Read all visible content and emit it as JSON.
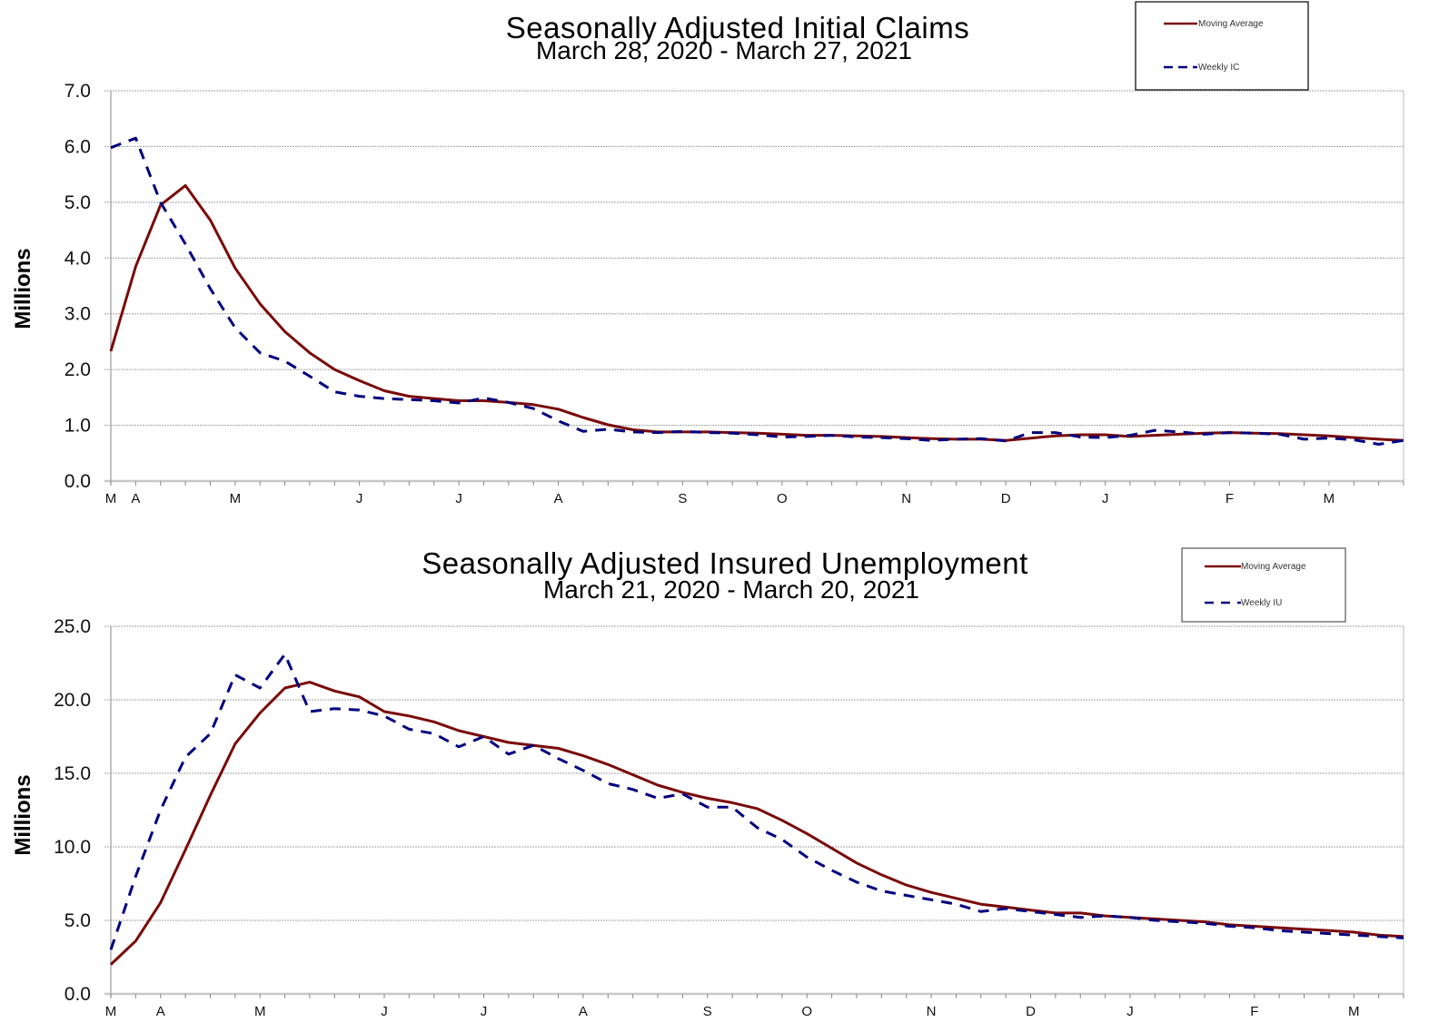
{
  "colors": {
    "moving_average": "#7a0a0a",
    "weekly": "#00007f",
    "grid": "#a0a0a0",
    "axis": "#999999"
  },
  "chart_data": [
    {
      "type": "line",
      "title": "Seasonally Adjusted Initial Claims",
      "subtitle": "March 28, 2020 - March 27, 2021",
      "xlabel": "",
      "ylabel": "Millions",
      "ylim": [
        0,
        7
      ],
      "yticks": [
        "0.0",
        "1.0",
        "2.0",
        "3.0",
        "4.0",
        "5.0",
        "6.0",
        "7.0"
      ],
      "xtick_labels": [
        {
          "label": "M",
          "week": 0
        },
        {
          "label": "A",
          "week": 1
        },
        {
          "label": "M",
          "week": 5
        },
        {
          "label": "J",
          "week": 10
        },
        {
          "label": "J",
          "week": 14
        },
        {
          "label": "A",
          "week": 18
        },
        {
          "label": "S",
          "week": 23
        },
        {
          "label": "O",
          "week": 27
        },
        {
          "label": "N",
          "week": 32
        },
        {
          "label": "D",
          "week": 36
        },
        {
          "label": "J",
          "week": 40
        },
        {
          "label": "F",
          "week": 45
        },
        {
          "label": "M",
          "week": 49
        }
      ],
      "grid": true,
      "legend": {
        "placement": "top-right",
        "entries": [
          "Moving Average",
          "Weekly IC"
        ]
      },
      "series": [
        {
          "name": "Moving Average",
          "style": "solid",
          "values": [
            2.33,
            3.85,
            4.95,
            5.3,
            4.68,
            3.82,
            3.18,
            2.68,
            2.3,
            2.0,
            1.8,
            1.62,
            1.52,
            1.48,
            1.44,
            1.44,
            1.41,
            1.37,
            1.29,
            1.14,
            1.01,
            0.92,
            0.88,
            0.88,
            0.88,
            0.87,
            0.86,
            0.84,
            0.82,
            0.82,
            0.81,
            0.8,
            0.78,
            0.76,
            0.75,
            0.75,
            0.73,
            0.77,
            0.81,
            0.83,
            0.83,
            0.8,
            0.82,
            0.84,
            0.86,
            0.87,
            0.86,
            0.85,
            0.83,
            0.81,
            0.78,
            0.75,
            0.73
          ]
        },
        {
          "name": "Weekly IC",
          "style": "dashed",
          "values": [
            5.98,
            6.15,
            5.0,
            4.25,
            3.45,
            2.75,
            2.3,
            2.15,
            1.88,
            1.6,
            1.52,
            1.48,
            1.46,
            1.44,
            1.4,
            1.49,
            1.41,
            1.3,
            1.08,
            0.89,
            0.93,
            0.88,
            0.87,
            0.89,
            0.87,
            0.86,
            0.83,
            0.79,
            0.8,
            0.82,
            0.79,
            0.78,
            0.76,
            0.73,
            0.75,
            0.76,
            0.72,
            0.87,
            0.87,
            0.79,
            0.78,
            0.82,
            0.91,
            0.88,
            0.84,
            0.87,
            0.86,
            0.84,
            0.75,
            0.77,
            0.74,
            0.66,
            0.73
          ]
        }
      ]
    },
    {
      "type": "line",
      "title": "Seasonally Adjusted Insured Unemployment",
      "subtitle": "March 21, 2020 - March 20, 2021",
      "xlabel": "",
      "ylabel": "Millions",
      "ylim": [
        0,
        25
      ],
      "yticks": [
        "0.0",
        "5.0",
        "10.0",
        "15.0",
        "20.0",
        "25.0"
      ],
      "xtick_labels": [
        {
          "label": "M",
          "week": 0
        },
        {
          "label": "A",
          "week": 2
        },
        {
          "label": "M",
          "week": 6
        },
        {
          "label": "J",
          "week": 11
        },
        {
          "label": "J",
          "week": 15
        },
        {
          "label": "A",
          "week": 19
        },
        {
          "label": "S",
          "week": 24
        },
        {
          "label": "O",
          "week": 28
        },
        {
          "label": "N",
          "week": 33
        },
        {
          "label": "D",
          "week": 37
        },
        {
          "label": "J",
          "week": 41
        },
        {
          "label": "F",
          "week": 46
        },
        {
          "label": "M",
          "week": 50
        }
      ],
      "grid": true,
      "legend": {
        "placement": "top-right",
        "entries": [
          "Moving Average",
          "Weekly IU"
        ]
      },
      "series": [
        {
          "name": "Moving Average",
          "style": "solid",
          "values": [
            2.0,
            3.6,
            6.2,
            9.8,
            13.5,
            17.0,
            19.1,
            20.8,
            21.2,
            20.6,
            20.2,
            19.2,
            18.9,
            18.5,
            17.9,
            17.5,
            17.1,
            16.9,
            16.7,
            16.2,
            15.6,
            14.9,
            14.2,
            13.7,
            13.3,
            13.0,
            12.6,
            11.8,
            10.9,
            9.9,
            8.9,
            8.1,
            7.4,
            6.9,
            6.5,
            6.1,
            5.9,
            5.7,
            5.5,
            5.5,
            5.3,
            5.2,
            5.1,
            5.0,
            4.9,
            4.7,
            4.6,
            4.5,
            4.4,
            4.3,
            4.2,
            4.0,
            3.9
          ]
        },
        {
          "name": "Weekly IU",
          "style": "dashed",
          "values": [
            3.0,
            8.0,
            12.5,
            16.1,
            17.7,
            21.7,
            20.8,
            23.1,
            19.2,
            19.4,
            19.3,
            18.9,
            18.0,
            17.7,
            16.8,
            17.5,
            16.3,
            16.9,
            16.0,
            15.2,
            14.3,
            13.9,
            13.3,
            13.6,
            12.7,
            12.7,
            11.3,
            10.5,
            9.3,
            8.4,
            7.6,
            7.0,
            6.7,
            6.4,
            6.1,
            5.6,
            5.8,
            5.6,
            5.4,
            5.2,
            5.3,
            5.2,
            5.0,
            4.9,
            4.8,
            4.6,
            4.5,
            4.3,
            4.2,
            4.1,
            4.0,
            3.9,
            3.8
          ]
        }
      ]
    }
  ]
}
